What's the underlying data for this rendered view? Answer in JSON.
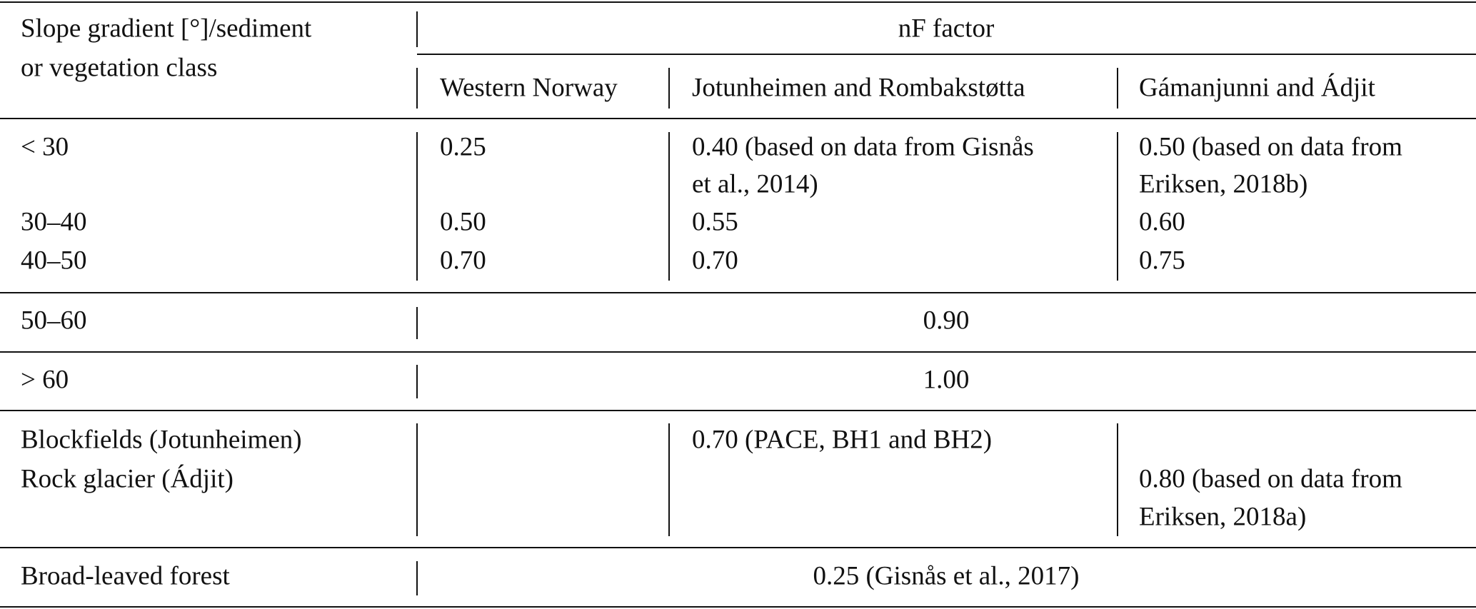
{
  "header": {
    "row_label": [
      "Slope gradient [°]/sediment",
      "or vegetation class"
    ],
    "group_label": "nF factor",
    "columns": [
      "Western Norway",
      "Jotunheimen and Rombakstøtta",
      "Gámanjunni and Ádjit"
    ]
  },
  "rows": [
    {
      "label": "< 30",
      "western_norway": "0.25",
      "jotunheimen": [
        "0.40 (based on data from Gisnås",
        "et al., 2014)"
      ],
      "gamanjunni": [
        "0.50 (based on data from",
        "Eriksen, 2018b)"
      ]
    },
    {
      "label": "30–40",
      "western_norway": "0.50",
      "jotunheimen": "0.55",
      "gamanjunni": "0.60"
    },
    {
      "label": "40–50",
      "western_norway": "0.70",
      "jotunheimen": "0.70",
      "gamanjunni": "0.75"
    },
    {
      "label": "50–60",
      "all": "0.90"
    },
    {
      "label": "> 60",
      "all": "1.00"
    },
    {
      "label": "Blockfields (Jotunheimen)",
      "jotunheimen": "0.70 (PACE, BH1 and BH2)"
    },
    {
      "label": "Rock glacier (Ádjit)",
      "gamanjunni": [
        "0.80 (based on data from",
        "Eriksen, 2018a)"
      ]
    },
    {
      "label": "Broad-leaved forest",
      "all": "0.25 (Gisnås et al., 2017)"
    }
  ]
}
